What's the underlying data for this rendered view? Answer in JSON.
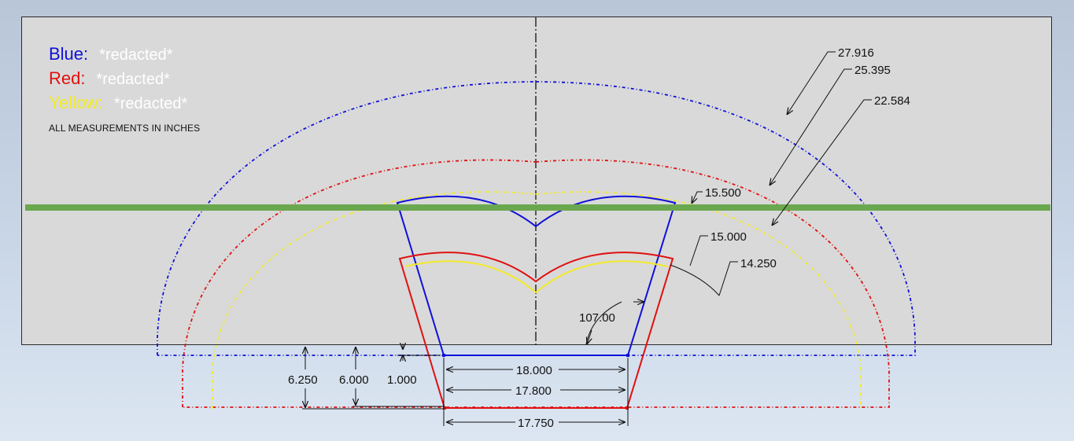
{
  "legend": {
    "items": [
      {
        "key": "Blue:",
        "value": "*redacted*",
        "color": "#1010d8"
      },
      {
        "key": "Red:",
        "value": "*redacted*",
        "color": "#e01010"
      },
      {
        "key": "Yellow:",
        "value": "*redacted*",
        "color": "#f2ea2a"
      }
    ]
  },
  "note": "ALL MEASUREMENTS IN INCHES",
  "dimensions": {
    "r_blue_outer": "27.916",
    "r_red_outer": "25.395",
    "r_yellow_outer": "22.584",
    "r_blue_inner": "15.500",
    "r_red_inner": "15.000",
    "r_yellow_inner": "14.250",
    "angle": "107.00",
    "bottom_blue": "18.000",
    "mid_width": "17.800",
    "bottom_red": "17.750",
    "height_red": "6.250",
    "height_yellow": "6.000",
    "offset": "1.000"
  },
  "colors": {
    "blue": "#1010d8",
    "red": "#e01010",
    "yellow": "#f2ea2a",
    "green": "#6aa84f",
    "sheet": "#d9d9d9"
  }
}
